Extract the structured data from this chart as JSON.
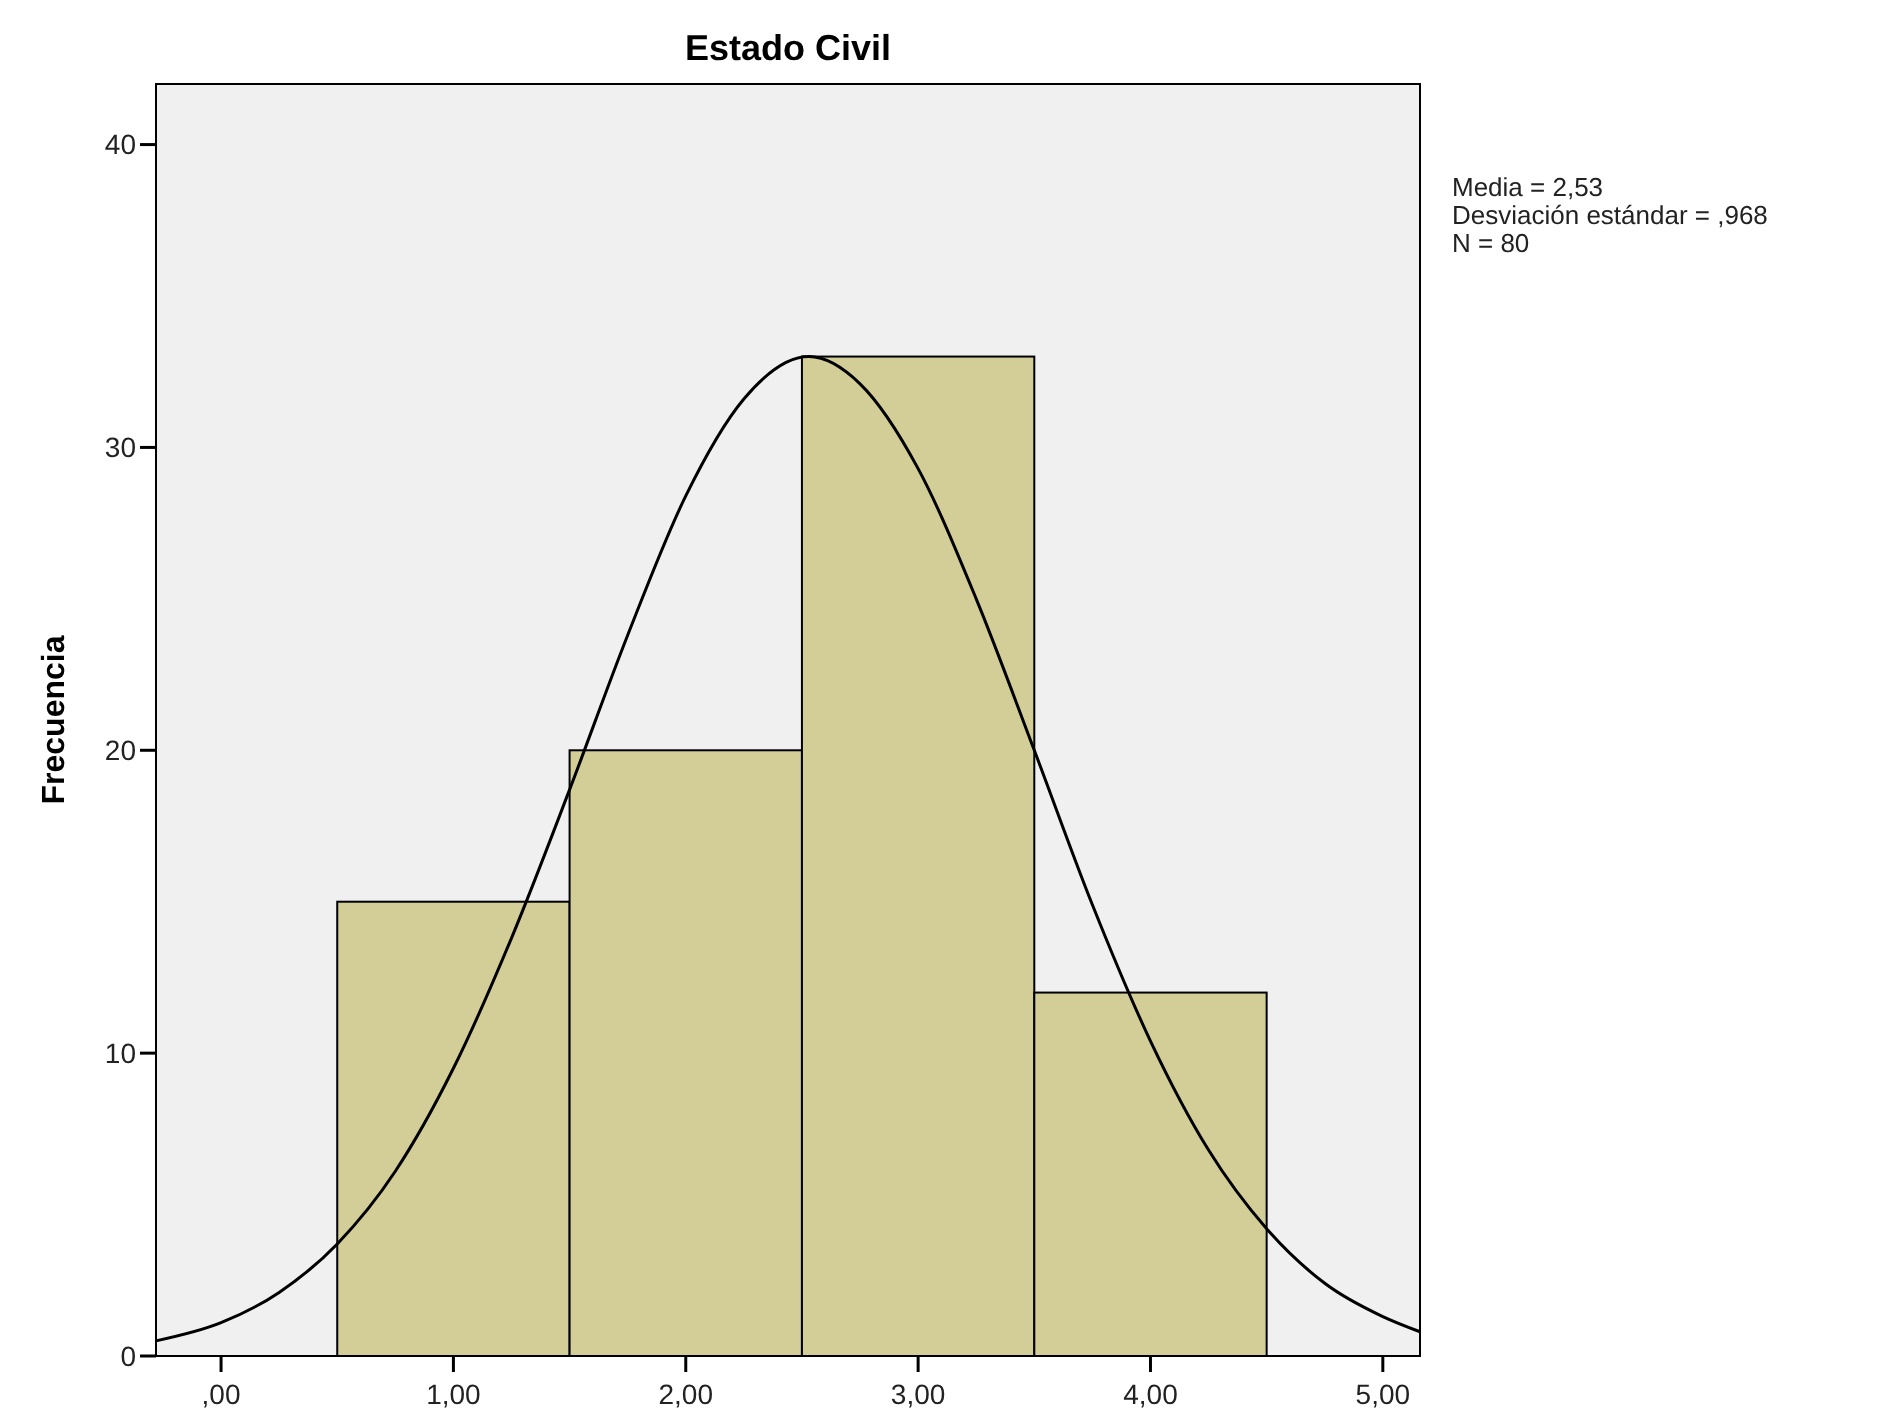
{
  "chart_data": {
    "type": "histogram",
    "title": "Estado Civil",
    "ylabel": "Frecuencia",
    "bins": [
      0.5,
      1.5,
      2.5,
      3.5,
      4.5
    ],
    "values": [
      15,
      20,
      33,
      12
    ],
    "color": "#d3ce97",
    "series": [
      {
        "type": "line",
        "color": "#000000",
        "x": [
          -0.28,
          0,
          0.25,
          0.5,
          0.75,
          1,
          1.25,
          1.5,
          1.75,
          2,
          2.25,
          2.53,
          2.75,
          3,
          3.25,
          3.5,
          3.75,
          4,
          4.25,
          4.5,
          4.75,
          5,
          5.16
        ],
        "values": [
          0.5,
          1.1,
          2.1,
          3.7,
          6.1,
          9.5,
          13.8,
          18.7,
          23.8,
          28.4,
          31.6,
          33,
          32.1,
          29.3,
          25,
          20,
          14.9,
          10.4,
          6.8,
          4.2,
          2.4,
          1.3,
          0.8
        ]
      }
    ],
    "xlim": [
      -0.28,
      5.16
    ],
    "xticks": [
      {
        "value": 0,
        "label": ",00"
      },
      {
        "value": 1,
        "label": "1,00"
      },
      {
        "value": 2,
        "label": "2,00"
      },
      {
        "value": 3,
        "label": "3,00"
      },
      {
        "value": 4,
        "label": "4,00"
      },
      {
        "value": 5,
        "label": "5,00"
      }
    ],
    "ylim": [
      0,
      42
    ],
    "yticks": [
      0,
      10,
      20,
      30,
      40
    ],
    "grid": false,
    "annotations": [
      "Media = 2,53",
      "Desviación estándar = ,968",
      "N = 80"
    ]
  }
}
